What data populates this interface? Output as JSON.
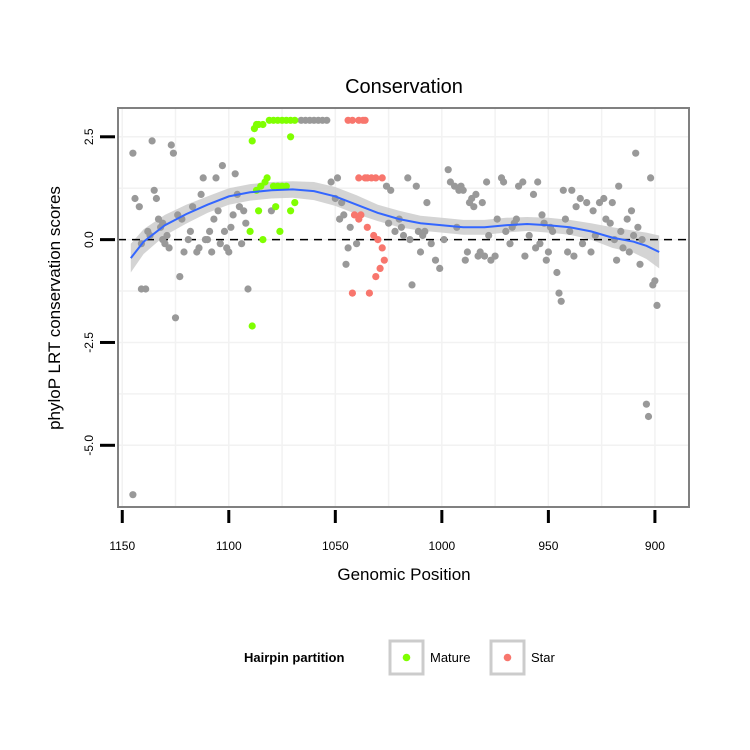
{
  "chart_data": {
    "type": "scatter",
    "title": "Conservation",
    "xlabel": "Genomic Position",
    "ylabel": "phyloP LRT conservation scores",
    "x_reversed": true,
    "xlim": [
      1152,
      884
    ],
    "ylim": [
      -6.5,
      3.2
    ],
    "x_ticks": [
      1150,
      1100,
      1050,
      1000,
      950,
      900
    ],
    "x_tick_labels": [
      "1150",
      "1100",
      "1050",
      "1000",
      "950",
      "900"
    ],
    "y_ticks": [
      2.5,
      0.0,
      -2.5,
      -5.0
    ],
    "y_tick_labels": [
      "2.5",
      "0.0",
      "-2.5",
      "-5.0"
    ],
    "reference_line_y": 0,
    "grid": true,
    "legend": {
      "title": "Hairpin partition",
      "position": "bottom",
      "entries": [
        {
          "label": "Mature",
          "color": "#7fff00"
        },
        {
          "label": "Star",
          "color": "#f8766d"
        }
      ]
    },
    "colors": {
      "other": "#999999",
      "mature": "#7fff00",
      "star": "#f8766d",
      "smooth": "#3366ff",
      "band": "#cccccc"
    },
    "series": [
      {
        "name": "Mature",
        "points": [
          [
            1089,
            -2.1
          ],
          [
            1089,
            2.4
          ],
          [
            1088,
            2.7
          ],
          [
            1087,
            2.8
          ],
          [
            1086,
            2.8
          ],
          [
            1084,
            2.8
          ],
          [
            1081,
            2.9
          ],
          [
            1079,
            2.9
          ],
          [
            1077,
            2.9
          ],
          [
            1075,
            2.9
          ],
          [
            1073,
            2.9
          ],
          [
            1071,
            2.9
          ],
          [
            1069,
            2.9
          ],
          [
            1087,
            1.2
          ],
          [
            1085,
            1.3
          ],
          [
            1083,
            1.4
          ],
          [
            1082,
            1.5
          ],
          [
            1079,
            1.3
          ],
          [
            1077,
            1.3
          ],
          [
            1075,
            1.3
          ],
          [
            1073,
            1.3
          ],
          [
            1071,
            2.5
          ],
          [
            1069,
            0.9
          ],
          [
            1071,
            0.7
          ],
          [
            1078,
            0.8
          ],
          [
            1086,
            0.7
          ],
          [
            1090,
            0.2
          ],
          [
            1084,
            0.0
          ],
          [
            1076,
            0.2
          ]
        ]
      },
      {
        "name": "Star",
        "points": [
          [
            1044,
            2.9
          ],
          [
            1042,
            2.9
          ],
          [
            1039,
            2.9
          ],
          [
            1037,
            2.9
          ],
          [
            1036,
            2.9
          ],
          [
            1039,
            1.5
          ],
          [
            1036,
            1.5
          ],
          [
            1035,
            1.5
          ],
          [
            1033,
            1.5
          ],
          [
            1031,
            1.5
          ],
          [
            1028,
            1.5
          ],
          [
            1041,
            0.6
          ],
          [
            1038,
            0.6
          ],
          [
            1035,
            0.3
          ],
          [
            1032,
            0.1
          ],
          [
            1030,
            0.0
          ],
          [
            1028,
            -0.2
          ],
          [
            1027,
            -0.5
          ],
          [
            1029,
            -0.7
          ],
          [
            1031,
            -0.9
          ],
          [
            1034,
            -1.3
          ],
          [
            1042,
            -1.3
          ],
          [
            1039,
            0.5
          ]
        ]
      },
      {
        "points": [
          [
            1145,
            -6.2
          ],
          [
            1145,
            2.1
          ],
          [
            1144,
            1.0
          ],
          [
            1142,
            0.8
          ],
          [
            1141,
            -0.1
          ],
          [
            1141,
            -1.2
          ],
          [
            1139,
            -1.2
          ],
          [
            1138,
            0.2
          ],
          [
            1137,
            0.1
          ],
          [
            1136,
            2.4
          ],
          [
            1135,
            1.2
          ],
          [
            1134,
            1.0
          ],
          [
            1133,
            0.5
          ],
          [
            1132,
            0.3
          ],
          [
            1131,
            0.0
          ],
          [
            1130,
            -0.1
          ],
          [
            1128,
            -0.2
          ],
          [
            1127,
            2.3
          ],
          [
            1126,
            2.1
          ],
          [
            1125,
            -1.9
          ],
          [
            1124,
            0.6
          ],
          [
            1123,
            -0.9
          ],
          [
            1121,
            -0.3
          ],
          [
            1119,
            0.0
          ],
          [
            1117,
            0.8
          ],
          [
            1115,
            -0.3
          ],
          [
            1113,
            1.1
          ],
          [
            1112,
            1.5
          ],
          [
            1111,
            0.0
          ],
          [
            1110,
            0.0
          ],
          [
            1109,
            0.2
          ],
          [
            1108,
            -0.3
          ],
          [
            1107,
            0.5
          ],
          [
            1106,
            1.5
          ],
          [
            1105,
            0.7
          ],
          [
            1104,
            -0.1
          ],
          [
            1103,
            1.8
          ],
          [
            1102,
            0.2
          ],
          [
            1101,
            -0.2
          ],
          [
            1100,
            -0.3
          ],
          [
            1099,
            0.3
          ],
          [
            1098,
            0.6
          ],
          [
            1097,
            1.6
          ],
          [
            1096,
            1.1
          ],
          [
            1095,
            0.8
          ],
          [
            1094,
            -0.1
          ],
          [
            1093,
            0.7
          ],
          [
            1092,
            0.4
          ],
          [
            1091,
            -1.2
          ],
          [
            1066,
            2.9
          ],
          [
            1064,
            2.9
          ],
          [
            1062,
            2.9
          ],
          [
            1060,
            2.9
          ],
          [
            1058,
            2.9
          ],
          [
            1056,
            2.9
          ],
          [
            1054,
            2.9
          ],
          [
            1052,
            1.4
          ],
          [
            1050,
            1.0
          ],
          [
            1049,
            1.5
          ],
          [
            1048,
            0.5
          ],
          [
            1047,
            0.9
          ],
          [
            1046,
            0.6
          ],
          [
            1045,
            -0.6
          ],
          [
            1044,
            -0.2
          ],
          [
            1043,
            0.3
          ],
          [
            1026,
            1.3
          ],
          [
            1024,
            1.2
          ],
          [
            1022,
            0.2
          ],
          [
            1020,
            0.5
          ],
          [
            1018,
            0.1
          ],
          [
            1016,
            1.5
          ],
          [
            1015,
            0.0
          ],
          [
            1014,
            -1.1
          ],
          [
            1012,
            1.3
          ],
          [
            1011,
            0.2
          ],
          [
            1010,
            -0.3
          ],
          [
            1008,
            0.2
          ],
          [
            1007,
            0.9
          ],
          [
            1005,
            -0.1
          ],
          [
            1003,
            -0.5
          ],
          [
            1001,
            -0.7
          ],
          [
            999,
            0.0
          ],
          [
            997,
            1.7
          ],
          [
            996,
            1.4
          ],
          [
            994,
            1.3
          ],
          [
            993,
            0.3
          ],
          [
            992,
            1.2
          ],
          [
            991,
            1.3
          ],
          [
            990,
            1.2
          ],
          [
            989,
            -0.5
          ],
          [
            988,
            -0.3
          ],
          [
            987,
            0.9
          ],
          [
            986,
            1.0
          ],
          [
            985,
            0.8
          ],
          [
            984,
            1.1
          ],
          [
            983,
            -0.4
          ],
          [
            982,
            -0.3
          ],
          [
            981,
            0.9
          ],
          [
            979,
            1.4
          ],
          [
            978,
            0.1
          ],
          [
            977,
            -0.5
          ],
          [
            975,
            -0.4
          ],
          [
            974,
            0.5
          ],
          [
            972,
            1.5
          ],
          [
            971,
            1.4
          ],
          [
            970,
            0.2
          ],
          [
            968,
            -0.1
          ],
          [
            967,
            0.3
          ],
          [
            965,
            0.5
          ],
          [
            964,
            1.3
          ],
          [
            962,
            1.4
          ],
          [
            961,
            -0.4
          ],
          [
            959,
            0.1
          ],
          [
            957,
            1.1
          ],
          [
            956,
            -0.2
          ],
          [
            955,
            1.4
          ],
          [
            954,
            -0.1
          ],
          [
            953,
            0.6
          ],
          [
            951,
            -0.5
          ],
          [
            950,
            -0.3
          ],
          [
            949,
            0.3
          ],
          [
            948,
            0.2
          ],
          [
            946,
            -0.8
          ],
          [
            945,
            -1.3
          ],
          [
            944,
            -1.5
          ],
          [
            943,
            1.2
          ],
          [
            942,
            0.5
          ],
          [
            941,
            -0.3
          ],
          [
            940,
            0.2
          ],
          [
            938,
            -0.4
          ],
          [
            937,
            0.8
          ],
          [
            935,
            1.0
          ],
          [
            934,
            -0.1
          ],
          [
            932,
            0.9
          ],
          [
            930,
            -0.3
          ],
          [
            928,
            0.1
          ],
          [
            926,
            0.9
          ],
          [
            924,
            1.0
          ],
          [
            923,
            0.5
          ],
          [
            921,
            0.4
          ],
          [
            919,
            0.0
          ],
          [
            918,
            -0.5
          ],
          [
            917,
            1.3
          ],
          [
            916,
            0.2
          ],
          [
            915,
            -0.2
          ],
          [
            913,
            0.5
          ],
          [
            912,
            -0.3
          ],
          [
            911,
            0.7
          ],
          [
            909,
            2.1
          ],
          [
            908,
            0.3
          ],
          [
            907,
            -0.6
          ],
          [
            906,
            0.0
          ],
          [
            904,
            -4.0
          ],
          [
            903,
            -4.3
          ],
          [
            902,
            1.5
          ],
          [
            901,
            -1.1
          ],
          [
            900,
            -1.0
          ],
          [
            899,
            -1.6
          ],
          [
            1131,
            0.4
          ],
          [
            1129,
            0.1
          ],
          [
            1122,
            0.5
          ],
          [
            1118,
            0.2
          ],
          [
            1114,
            -0.2
          ],
          [
            1080,
            0.7
          ],
          [
            1040,
            -0.1
          ],
          [
            1025,
            0.4
          ],
          [
            1019,
            0.3
          ],
          [
            1009,
            0.1
          ],
          [
            980,
            -0.4
          ],
          [
            966,
            0.4
          ],
          [
            952,
            0.4
          ],
          [
            939,
            1.2
          ],
          [
            929,
            0.7
          ],
          [
            920,
            0.9
          ],
          [
            910,
            0.1
          ]
        ]
      }
    ],
    "smooth_line": [
      [
        1146,
        -0.45
      ],
      [
        1140,
        -0.05
      ],
      [
        1130,
        0.35
      ],
      [
        1120,
        0.62
      ],
      [
        1110,
        0.85
      ],
      [
        1100,
        1.05
      ],
      [
        1090,
        1.15
      ],
      [
        1080,
        1.2
      ],
      [
        1070,
        1.22
      ],
      [
        1060,
        1.18
      ],
      [
        1050,
        1.05
      ],
      [
        1040,
        0.85
      ],
      [
        1030,
        0.65
      ],
      [
        1020,
        0.5
      ],
      [
        1010,
        0.4
      ],
      [
        1000,
        0.35
      ],
      [
        990,
        0.3
      ],
      [
        980,
        0.3
      ],
      [
        970,
        0.35
      ],
      [
        960,
        0.38
      ],
      [
        950,
        0.35
      ],
      [
        940,
        0.3
      ],
      [
        930,
        0.2
      ],
      [
        920,
        0.05
      ],
      [
        910,
        -0.05
      ],
      [
        904,
        -0.15
      ],
      [
        898,
        -0.3
      ]
    ],
    "smooth_band_upper": [
      [
        1146,
        -0.1
      ],
      [
        1140,
        0.25
      ],
      [
        1130,
        0.6
      ],
      [
        1120,
        0.85
      ],
      [
        1110,
        1.05
      ],
      [
        1100,
        1.25
      ],
      [
        1090,
        1.35
      ],
      [
        1080,
        1.4
      ],
      [
        1070,
        1.42
      ],
      [
        1060,
        1.4
      ],
      [
        1050,
        1.28
      ],
      [
        1040,
        1.08
      ],
      [
        1030,
        0.85
      ],
      [
        1020,
        0.7
      ],
      [
        1010,
        0.58
      ],
      [
        1000,
        0.53
      ],
      [
        990,
        0.48
      ],
      [
        980,
        0.48
      ],
      [
        970,
        0.53
      ],
      [
        960,
        0.55
      ],
      [
        950,
        0.53
      ],
      [
        940,
        0.48
      ],
      [
        930,
        0.4
      ],
      [
        920,
        0.3
      ],
      [
        910,
        0.22
      ],
      [
        904,
        0.17
      ],
      [
        898,
        0.1
      ]
    ],
    "smooth_band_lower": [
      [
        1146,
        -0.8
      ],
      [
        1140,
        -0.35
      ],
      [
        1130,
        0.1
      ],
      [
        1120,
        0.39
      ],
      [
        1110,
        0.65
      ],
      [
        1100,
        0.85
      ],
      [
        1090,
        0.95
      ],
      [
        1080,
        1.0
      ],
      [
        1070,
        1.02
      ],
      [
        1060,
        0.96
      ],
      [
        1050,
        0.82
      ],
      [
        1040,
        0.62
      ],
      [
        1030,
        0.45
      ],
      [
        1020,
        0.3
      ],
      [
        1010,
        0.22
      ],
      [
        1000,
        0.17
      ],
      [
        990,
        0.12
      ],
      [
        980,
        0.12
      ],
      [
        970,
        0.17
      ],
      [
        960,
        0.21
      ],
      [
        950,
        0.17
      ],
      [
        940,
        0.12
      ],
      [
        930,
        0.0
      ],
      [
        920,
        -0.2
      ],
      [
        910,
        -0.32
      ],
      [
        904,
        -0.47
      ],
      [
        898,
        -0.7
      ]
    ]
  }
}
